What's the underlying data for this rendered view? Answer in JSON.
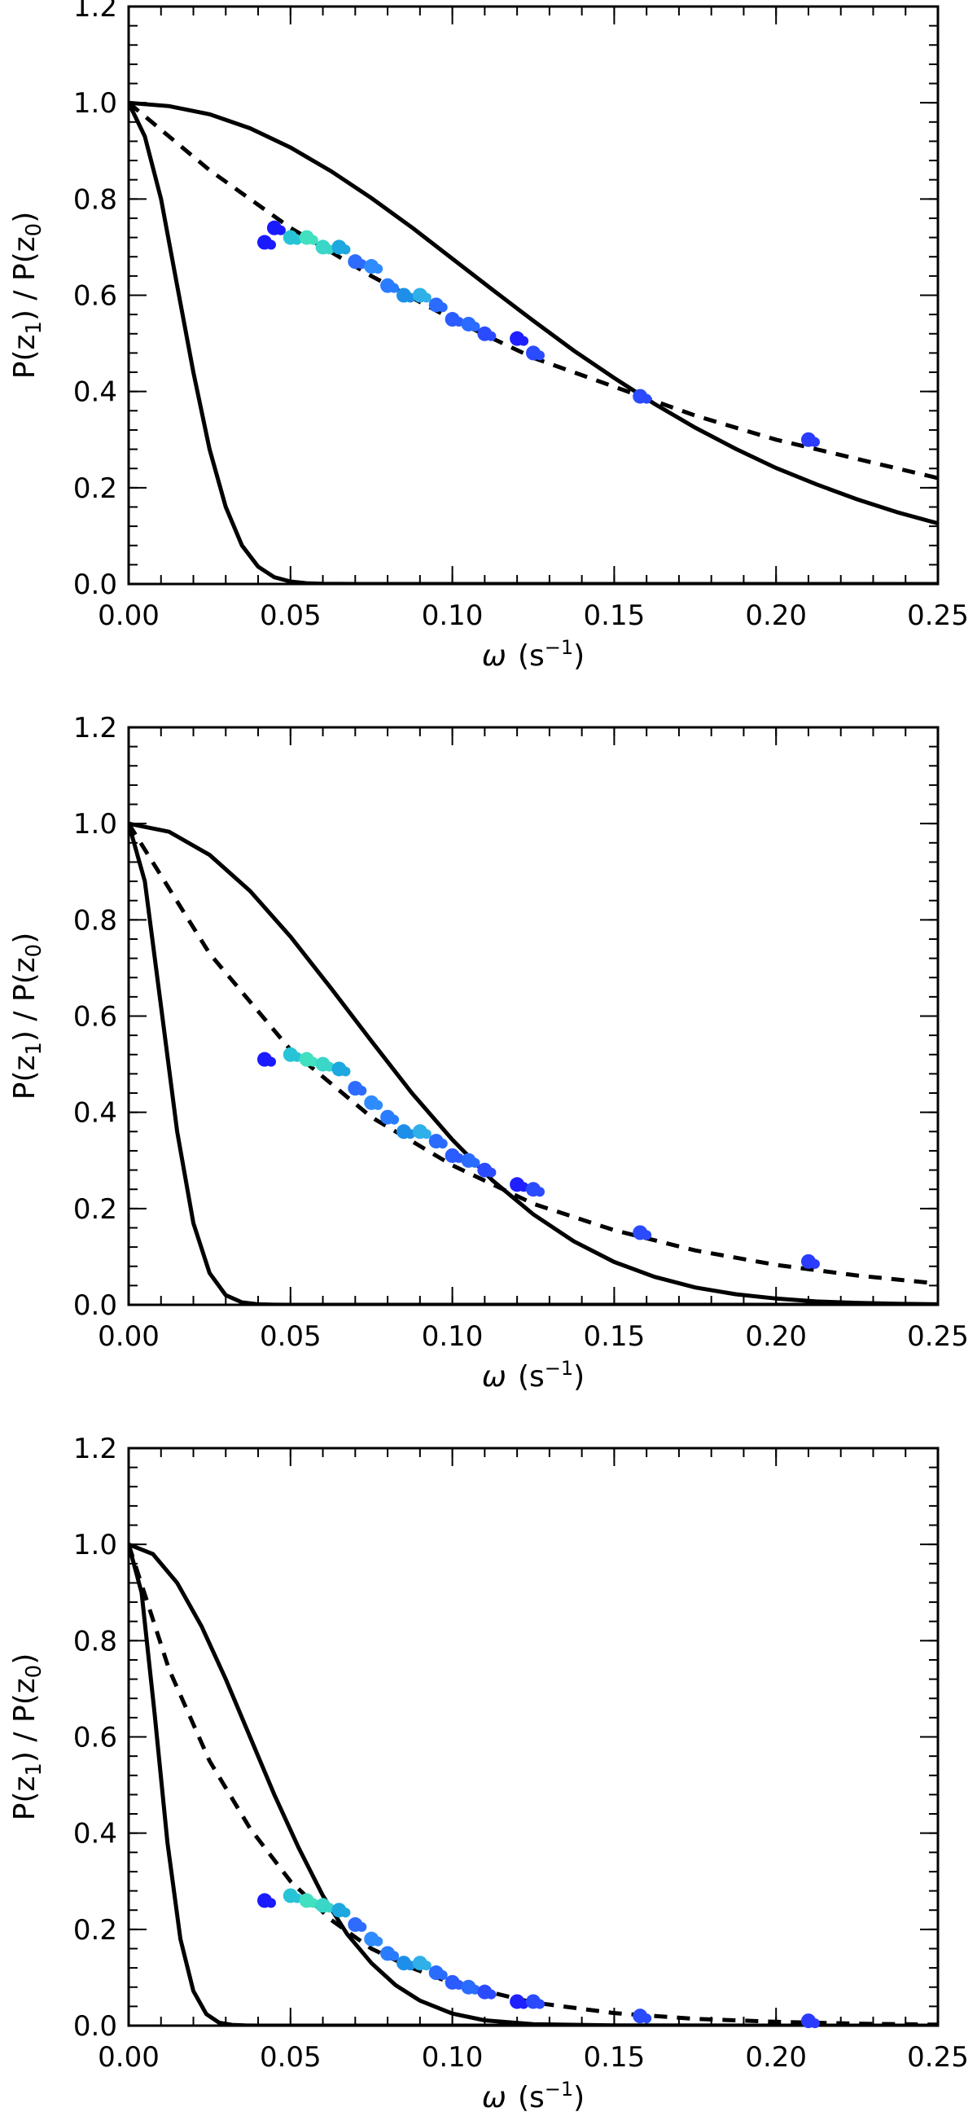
{
  "chart_data": [
    {
      "type": "line",
      "panel": "top",
      "title": "",
      "xlabel": "ω (s⁻¹)",
      "xlabel_parts": {
        "symbol": "ω",
        "open": "(s",
        "exponent": "−1",
        "close": ")"
      },
      "ylabel": "P(z1) / P(z0)",
      "ylabel_parts": {
        "a": "P(z",
        "a_sub": "1",
        "mid": ") / P(z",
        "b_sub": "0",
        "end": ")"
      },
      "xlim": [
        0.0,
        0.25
      ],
      "ylim": [
        0.0,
        1.2
      ],
      "xticks": [
        "0.00",
        "0.05",
        "0.10",
        "0.15",
        "0.20",
        "0.25"
      ],
      "yticks": [
        "0.0",
        "0.2",
        "0.4",
        "0.6",
        "0.8",
        "1.0",
        "1.2"
      ],
      "series": [
        {
          "name": "solid-narrow",
          "style": "solid",
          "color": "#000000",
          "x": [
            0,
            0.005,
            0.01,
            0.015,
            0.02,
            0.025,
            0.03,
            0.035,
            0.04,
            0.045,
            0.05,
            0.055,
            0.06,
            0.07,
            0.08,
            0.1,
            0.15,
            0.2,
            0.25
          ],
          "y": [
            1.0,
            0.93,
            0.8,
            0.62,
            0.44,
            0.28,
            0.16,
            0.08,
            0.036,
            0.014,
            0.005,
            0.0015,
            0.0004,
            0,
            0,
            0,
            0,
            0,
            0
          ]
        },
        {
          "name": "solid-wide",
          "style": "solid",
          "color": "#000000",
          "x": [
            0,
            0.0125,
            0.025,
            0.0375,
            0.05,
            0.0625,
            0.075,
            0.0875,
            0.1,
            0.1125,
            0.125,
            0.1375,
            0.15,
            0.1625,
            0.175,
            0.1875,
            0.2,
            0.2125,
            0.225,
            0.2375,
            0.25
          ],
          "y": [
            1.0,
            0.993,
            0.976,
            0.947,
            0.907,
            0.858,
            0.802,
            0.741,
            0.676,
            0.611,
            0.547,
            0.485,
            0.428,
            0.374,
            0.325,
            0.281,
            0.241,
            0.207,
            0.176,
            0.149,
            0.126
          ]
        },
        {
          "name": "dashed-fit",
          "style": "dashed",
          "color": "#000000",
          "x": [
            0,
            0.025,
            0.05,
            0.075,
            0.1,
            0.125,
            0.15,
            0.175,
            0.2,
            0.225,
            0.25
          ],
          "y": [
            1.0,
            0.86,
            0.74,
            0.64,
            0.55,
            0.47,
            0.41,
            0.35,
            0.3,
            0.26,
            0.22
          ]
        },
        {
          "name": "measured-points",
          "style": "markers",
          "x": [
            0.042,
            0.045,
            0.05,
            0.055,
            0.06,
            0.065,
            0.07,
            0.075,
            0.08,
            0.085,
            0.09,
            0.095,
            0.1,
            0.105,
            0.11,
            0.12,
            0.125,
            0.158,
            0.21
          ],
          "y": [
            0.71,
            0.74,
            0.72,
            0.72,
            0.7,
            0.7,
            0.67,
            0.66,
            0.62,
            0.6,
            0.6,
            0.58,
            0.55,
            0.54,
            0.52,
            0.51,
            0.48,
            0.39,
            0.3
          ],
          "colors": [
            "#1a1aff",
            "#1a1aff",
            "#26c4d6",
            "#40e0c0",
            "#3ad6c8",
            "#1ea8e0",
            "#2d6cff",
            "#2e8cff",
            "#2a7cff",
            "#1e8fe8",
            "#2fb0e8",
            "#2a6cff",
            "#2b5cff",
            "#2a6cff",
            "#2b4bff",
            "#1f1fff",
            "#2b4bff",
            "#2b4bff",
            "#2b3bff"
          ]
        }
      ]
    },
    {
      "type": "line",
      "panel": "middle",
      "title": "",
      "xlabel": "ω (s⁻¹)",
      "xlabel_parts": {
        "symbol": "ω",
        "open": "(s",
        "exponent": "−1",
        "close": ")"
      },
      "ylabel": "P(z1) / P(z0)",
      "ylabel_parts": {
        "a": "P(z",
        "a_sub": "1",
        "mid": ") / P(z",
        "b_sub": "0",
        "end": ")"
      },
      "xlim": [
        0.0,
        0.25
      ],
      "ylim": [
        0.0,
        1.2
      ],
      "xticks": [
        "0.00",
        "0.05",
        "0.10",
        "0.15",
        "0.20",
        "0.25"
      ],
      "yticks": [
        "0.0",
        "0.2",
        "0.4",
        "0.6",
        "0.8",
        "1.0",
        "1.2"
      ],
      "series": [
        {
          "name": "solid-narrow",
          "style": "solid",
          "color": "#000000",
          "x": [
            0,
            0.005,
            0.01,
            0.015,
            0.02,
            0.025,
            0.03,
            0.035,
            0.04,
            0.045,
            0.05,
            0.06,
            0.1,
            0.15,
            0.2,
            0.25
          ],
          "y": [
            1.0,
            0.88,
            0.62,
            0.36,
            0.17,
            0.066,
            0.02,
            0.005,
            0.001,
            0.0002,
            0,
            0,
            0,
            0,
            0,
            0
          ]
        },
        {
          "name": "solid-wide",
          "style": "solid",
          "color": "#000000",
          "x": [
            0,
            0.0125,
            0.025,
            0.0375,
            0.05,
            0.0625,
            0.075,
            0.0875,
            0.1,
            0.1125,
            0.125,
            0.1375,
            0.15,
            0.1625,
            0.175,
            0.1875,
            0.2,
            0.2125,
            0.225,
            0.2375,
            0.25
          ],
          "y": [
            1.0,
            0.983,
            0.935,
            0.86,
            0.765,
            0.658,
            0.548,
            0.44,
            0.343,
            0.258,
            0.188,
            0.132,
            0.089,
            0.058,
            0.036,
            0.022,
            0.013,
            0.007,
            0.004,
            0.002,
            0.001
          ]
        },
        {
          "name": "dashed-fit",
          "style": "dashed",
          "color": "#000000",
          "x": [
            0,
            0.025,
            0.05,
            0.075,
            0.1,
            0.125,
            0.15,
            0.175,
            0.2,
            0.225,
            0.25
          ],
          "y": [
            1.0,
            0.73,
            0.53,
            0.39,
            0.29,
            0.21,
            0.155,
            0.113,
            0.083,
            0.061,
            0.044
          ]
        },
        {
          "name": "measured-points",
          "style": "markers",
          "x": [
            0.042,
            0.05,
            0.055,
            0.06,
            0.065,
            0.07,
            0.075,
            0.08,
            0.085,
            0.09,
            0.095,
            0.1,
            0.105,
            0.11,
            0.12,
            0.125,
            0.158,
            0.21
          ],
          "y": [
            0.51,
            0.52,
            0.51,
            0.5,
            0.49,
            0.45,
            0.42,
            0.39,
            0.36,
            0.36,
            0.34,
            0.31,
            0.3,
            0.28,
            0.25,
            0.24,
            0.15,
            0.09
          ],
          "colors": [
            "#1a1aff",
            "#26c4d6",
            "#40e0c0",
            "#3ad6c8",
            "#1ea8e0",
            "#2d6cff",
            "#2e8cff",
            "#2a7cff",
            "#1e8fe8",
            "#2fb0e8",
            "#2a6cff",
            "#2b5cff",
            "#2a6cff",
            "#2b4bff",
            "#1f1fff",
            "#2b4bff",
            "#2b4bff",
            "#2b3bff"
          ]
        }
      ]
    },
    {
      "type": "line",
      "panel": "bottom",
      "title": "",
      "xlabel": "ω (s⁻¹)",
      "xlabel_parts": {
        "symbol": "ω",
        "open": "(s",
        "exponent": "−1",
        "close": ")"
      },
      "ylabel": "P(z1) / P(z0)",
      "ylabel_parts": {
        "a": "P(z",
        "a_sub": "1",
        "mid": ") / P(z",
        "b_sub": "0",
        "end": ")"
      },
      "xlim": [
        0.0,
        0.25
      ],
      "ylim": [
        0.0,
        1.2
      ],
      "xticks": [
        "0.00",
        "0.05",
        "0.10",
        "0.15",
        "0.20",
        "0.25"
      ],
      "yticks": [
        "0.0",
        "0.2",
        "0.4",
        "0.6",
        "0.8",
        "1.0",
        "1.2"
      ],
      "series": [
        {
          "name": "solid-narrow",
          "style": "solid",
          "color": "#000000",
          "x": [
            0,
            0.004,
            0.008,
            0.012,
            0.016,
            0.02,
            0.024,
            0.028,
            0.032,
            0.036,
            0.04,
            0.05,
            0.1,
            0.15,
            0.2,
            0.25
          ],
          "y": [
            1.0,
            0.9,
            0.65,
            0.38,
            0.18,
            0.072,
            0.024,
            0.006,
            0.0015,
            0.0003,
            0,
            0,
            0,
            0,
            0,
            0
          ]
        },
        {
          "name": "solid-wide",
          "style": "solid",
          "color": "#000000",
          "x": [
            0,
            0.0075,
            0.015,
            0.0225,
            0.03,
            0.0375,
            0.045,
            0.0525,
            0.06,
            0.0675,
            0.075,
            0.0825,
            0.09,
            0.1,
            0.11,
            0.125,
            0.15,
            0.2,
            0.25
          ],
          "y": [
            1.0,
            0.98,
            0.92,
            0.83,
            0.72,
            0.6,
            0.48,
            0.37,
            0.27,
            0.19,
            0.13,
            0.084,
            0.052,
            0.025,
            0.011,
            0.003,
            0.0003,
            0,
            0
          ]
        },
        {
          "name": "dashed-fit",
          "style": "dashed",
          "color": "#000000",
          "x": [
            0,
            0.0125,
            0.025,
            0.0375,
            0.05,
            0.0625,
            0.075,
            0.0875,
            0.1,
            0.125,
            0.15,
            0.175,
            0.2,
            0.225,
            0.25
          ],
          "y": [
            1.0,
            0.74,
            0.55,
            0.41,
            0.3,
            0.22,
            0.16,
            0.12,
            0.088,
            0.048,
            0.026,
            0.014,
            0.008,
            0.004,
            0.002
          ]
        },
        {
          "name": "measured-points",
          "style": "markers",
          "x": [
            0.042,
            0.05,
            0.055,
            0.06,
            0.065,
            0.07,
            0.075,
            0.08,
            0.085,
            0.09,
            0.095,
            0.1,
            0.105,
            0.11,
            0.12,
            0.125,
            0.158,
            0.21
          ],
          "y": [
            0.26,
            0.27,
            0.26,
            0.25,
            0.24,
            0.21,
            0.18,
            0.15,
            0.13,
            0.13,
            0.11,
            0.09,
            0.08,
            0.07,
            0.05,
            0.05,
            0.02,
            0.01
          ],
          "colors": [
            "#1a1aff",
            "#26c4d6",
            "#40e0c0",
            "#3ad6c8",
            "#1ea8e0",
            "#2d6cff",
            "#2e8cff",
            "#2a7cff",
            "#1e8fe8",
            "#2fb0e8",
            "#2a6cff",
            "#2b5cff",
            "#2a6cff",
            "#2b4bff",
            "#1f1fff",
            "#2b4bff",
            "#2b4bff",
            "#2b3bff"
          ]
        }
      ]
    }
  ]
}
